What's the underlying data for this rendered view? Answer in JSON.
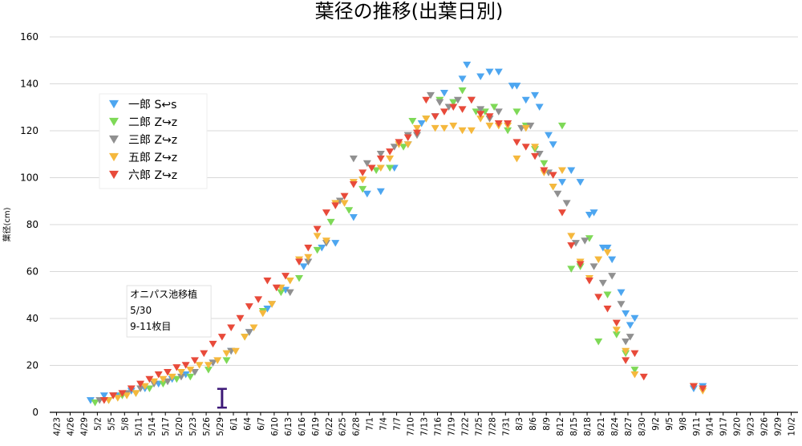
{
  "chart_data": {
    "type": "scatter",
    "title": "葉径の推移(出葉日別)",
    "ylabel": "葉径(cm)",
    "xlabel": "",
    "ylim": [
      0,
      160
    ],
    "yticks": [
      0,
      20,
      40,
      60,
      80,
      100,
      120,
      140,
      160
    ],
    "grid": "horizontal",
    "legend": "upper-left",
    "x_tick_labels": [
      "4/23",
      "4/26",
      "4/29",
      "5/2",
      "5/5",
      "5/8",
      "5/11",
      "5/14",
      "5/17",
      "5/20",
      "5/23",
      "5/26",
      "5/29",
      "6/1",
      "6/4",
      "6/7",
      "6/10",
      "6/13",
      "6/16",
      "6/19",
      "6/22",
      "6/25",
      "6/28",
      "7/1",
      "7/4",
      "7/7",
      "7/10",
      "7/13",
      "7/16",
      "7/19",
      "7/22",
      "7/25",
      "7/28",
      "7/31",
      "8/3",
      "8/6",
      "8/9",
      "8/12",
      "8/15",
      "8/18",
      "8/21",
      "8/24",
      "8/27",
      "8/30",
      "9/2",
      "9/5",
      "9/8",
      "9/11",
      "9/14",
      "9/17",
      "9/20",
      "9/23",
      "9/26",
      "9/29",
      "10/2"
    ],
    "series": [
      {
        "name": "一郎 S↩s",
        "color": "#4da6f0",
        "points": [
          [
            9,
            5
          ],
          [
            12,
            7
          ],
          [
            15,
            7
          ],
          [
            18,
            9
          ],
          [
            21,
            10
          ],
          [
            24,
            12
          ],
          [
            27,
            14
          ],
          [
            30,
            16
          ],
          [
            36,
            21
          ],
          [
            40,
            26
          ],
          [
            44,
            34
          ],
          [
            48,
            44
          ],
          [
            52,
            52
          ],
          [
            56,
            62
          ],
          [
            60,
            70
          ],
          [
            63,
            72
          ],
          [
            67,
            83
          ],
          [
            70,
            93
          ],
          [
            73,
            94
          ],
          [
            76,
            104
          ],
          [
            79,
            114
          ],
          [
            82,
            123
          ],
          [
            85,
            126
          ],
          [
            87,
            136
          ],
          [
            89,
            132
          ],
          [
            91,
            142
          ],
          [
            92,
            148
          ],
          [
            95,
            143
          ],
          [
            97,
            145
          ],
          [
            99,
            145
          ],
          [
            102,
            139
          ],
          [
            103,
            139
          ],
          [
            105,
            133
          ],
          [
            107,
            135
          ],
          [
            108,
            130
          ],
          [
            110,
            118
          ],
          [
            111,
            114
          ],
          [
            113,
            98
          ],
          [
            115,
            103
          ],
          [
            117,
            98
          ],
          [
            119,
            84
          ],
          [
            120,
            85
          ],
          [
            122,
            70
          ],
          [
            123,
            70
          ],
          [
            124,
            65
          ],
          [
            126,
            51
          ],
          [
            127,
            42
          ],
          [
            128,
            37
          ],
          [
            129,
            40
          ],
          [
            142,
            10
          ],
          [
            144,
            11
          ]
        ]
      },
      {
        "name": "二郎 Z↪z",
        "color": "#7ed957",
        "points": [
          [
            10,
            4
          ],
          [
            13,
            5
          ],
          [
            16,
            7
          ],
          [
            19,
            8
          ],
          [
            22,
            10
          ],
          [
            25,
            12
          ],
          [
            28,
            14
          ],
          [
            31,
            15
          ],
          [
            35,
            18
          ],
          [
            39,
            22
          ],
          [
            43,
            32
          ],
          [
            47,
            43
          ],
          [
            51,
            51
          ],
          [
            55,
            57
          ],
          [
            59,
            69
          ],
          [
            62,
            81
          ],
          [
            66,
            86
          ],
          [
            69,
            95
          ],
          [
            72,
            103
          ],
          [
            75,
            104
          ],
          [
            78,
            113
          ],
          [
            80,
            124
          ],
          [
            83,
            125
          ],
          [
            86,
            133
          ],
          [
            89,
            132
          ],
          [
            91,
            137
          ],
          [
            94,
            128
          ],
          [
            96,
            128
          ],
          [
            98,
            130
          ],
          [
            101,
            120
          ],
          [
            103,
            128
          ],
          [
            105,
            122
          ],
          [
            107,
            112
          ],
          [
            109,
            106
          ],
          [
            111,
            96
          ],
          [
            113,
            122
          ],
          [
            115,
            61
          ],
          [
            117,
            62
          ],
          [
            119,
            74
          ],
          [
            121,
            30
          ],
          [
            123,
            50
          ],
          [
            125,
            33
          ],
          [
            127,
            25
          ],
          [
            129,
            18
          ]
        ]
      },
      {
        "name": "三郎 Z↪z",
        "color": "#909090",
        "points": [
          [
            11,
            5
          ],
          [
            14,
            7
          ],
          [
            17,
            8
          ],
          [
            20,
            10
          ],
          [
            23,
            12
          ],
          [
            26,
            13
          ],
          [
            29,
            15
          ],
          [
            32,
            17
          ],
          [
            36,
            21
          ],
          [
            40,
            26
          ],
          [
            44,
            34
          ],
          [
            49,
            46
          ],
          [
            53,
            51
          ],
          [
            57,
            64
          ],
          [
            61,
            72
          ],
          [
            64,
            90
          ],
          [
            67,
            108
          ],
          [
            70,
            106
          ],
          [
            73,
            110
          ],
          [
            76,
            113
          ],
          [
            79,
            118
          ],
          [
            81,
            118
          ],
          [
            84,
            135
          ],
          [
            86,
            132
          ],
          [
            88,
            130
          ],
          [
            90,
            133
          ],
          [
            93,
            133
          ],
          [
            95,
            129
          ],
          [
            97,
            125
          ],
          [
            99,
            128
          ],
          [
            101,
            123
          ],
          [
            104,
            121
          ],
          [
            106,
            122
          ],
          [
            108,
            110
          ],
          [
            110,
            102
          ],
          [
            112,
            93
          ],
          [
            114,
            89
          ],
          [
            116,
            72
          ],
          [
            118,
            73
          ],
          [
            120,
            62
          ],
          [
            122,
            55
          ],
          [
            124,
            58
          ],
          [
            126,
            46
          ],
          [
            127,
            30
          ],
          [
            128,
            32
          ],
          [
            142,
            11
          ],
          [
            144,
            10
          ]
        ]
      },
      {
        "name": "五郎 Z↪z",
        "color": "#f5b83d",
        "points": [
          [
            13,
            5
          ],
          [
            15,
            6
          ],
          [
            17,
            7
          ],
          [
            19,
            8
          ],
          [
            21,
            11
          ],
          [
            23,
            13
          ],
          [
            25,
            14
          ],
          [
            27,
            15
          ],
          [
            29,
            17
          ],
          [
            31,
            18
          ],
          [
            33,
            20
          ],
          [
            35,
            20
          ],
          [
            37,
            22
          ],
          [
            39,
            25
          ],
          [
            41,
            26
          ],
          [
            43,
            32
          ],
          [
            45,
            36
          ],
          [
            47,
            42
          ],
          [
            49,
            46
          ],
          [
            51,
            53
          ],
          [
            53,
            56
          ],
          [
            55,
            65
          ],
          [
            57,
            66
          ],
          [
            59,
            75
          ],
          [
            61,
            73
          ],
          [
            63,
            89
          ],
          [
            65,
            89
          ],
          [
            67,
            98
          ],
          [
            69,
            99
          ],
          [
            71,
            104
          ],
          [
            73,
            104
          ],
          [
            75,
            108
          ],
          [
            77,
            114
          ],
          [
            79,
            114
          ],
          [
            81,
            121
          ],
          [
            83,
            125
          ],
          [
            85,
            121
          ],
          [
            87,
            121
          ],
          [
            89,
            122
          ],
          [
            91,
            120
          ],
          [
            93,
            120
          ],
          [
            95,
            125
          ],
          [
            97,
            122
          ],
          [
            99,
            122
          ],
          [
            101,
            122
          ],
          [
            103,
            108
          ],
          [
            105,
            121
          ],
          [
            107,
            113
          ],
          [
            109,
            102
          ],
          [
            111,
            96
          ],
          [
            113,
            103
          ],
          [
            115,
            75
          ],
          [
            117,
            64
          ],
          [
            119,
            57
          ],
          [
            121,
            65
          ],
          [
            123,
            68
          ],
          [
            125,
            35
          ],
          [
            127,
            26
          ],
          [
            129,
            16
          ],
          [
            142,
            11
          ],
          [
            144,
            9
          ]
        ]
      },
      {
        "name": "六郎 Z↪z",
        "color": "#e84a3a",
        "points": [
          [
            12,
            5
          ],
          [
            14,
            7
          ],
          [
            16,
            8
          ],
          [
            18,
            10
          ],
          [
            20,
            12
          ],
          [
            22,
            14
          ],
          [
            24,
            16
          ],
          [
            26,
            17
          ],
          [
            28,
            19
          ],
          [
            30,
            20
          ],
          [
            32,
            22
          ],
          [
            34,
            25
          ],
          [
            36,
            29
          ],
          [
            38,
            32
          ],
          [
            40,
            36
          ],
          [
            42,
            40
          ],
          [
            44,
            45
          ],
          [
            46,
            48
          ],
          [
            48,
            56
          ],
          [
            50,
            53
          ],
          [
            52,
            58
          ],
          [
            55,
            64
          ],
          [
            57,
            70
          ],
          [
            59,
            78
          ],
          [
            61,
            85
          ],
          [
            63,
            88
          ],
          [
            65,
            92
          ],
          [
            67,
            97
          ],
          [
            69,
            102
          ],
          [
            71,
            104
          ],
          [
            73,
            108
          ],
          [
            75,
            111
          ],
          [
            77,
            115
          ],
          [
            79,
            117
          ],
          [
            81,
            119
          ],
          [
            83,
            133
          ],
          [
            85,
            126
          ],
          [
            87,
            128
          ],
          [
            89,
            130
          ],
          [
            91,
            129
          ],
          [
            93,
            133
          ],
          [
            95,
            127
          ],
          [
            97,
            126
          ],
          [
            99,
            123
          ],
          [
            101,
            123
          ],
          [
            103,
            115
          ],
          [
            105,
            113
          ],
          [
            107,
            109
          ],
          [
            109,
            103
          ],
          [
            111,
            101
          ],
          [
            113,
            85
          ],
          [
            115,
            71
          ],
          [
            117,
            63
          ],
          [
            119,
            56
          ],
          [
            121,
            49
          ],
          [
            123,
            44
          ],
          [
            125,
            38
          ],
          [
            127,
            22
          ],
          [
            129,
            25
          ],
          [
            131,
            15
          ],
          [
            142,
            11
          ],
          [
            144,
            10
          ]
        ]
      }
    ],
    "annotation": {
      "lines": [
        "オニパス池移植",
        "5/30",
        "9-11枚目"
      ],
      "x_index": 38,
      "error_bar": [
        2,
        10
      ],
      "color": "#3e1a78"
    }
  }
}
